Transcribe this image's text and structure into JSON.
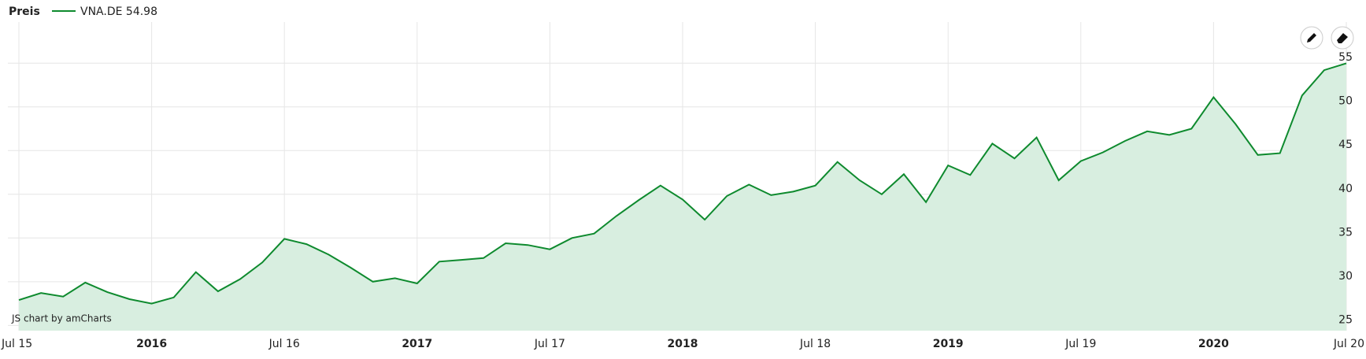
{
  "chart_data": {
    "type": "area",
    "legend_title": "Preis",
    "credit": "JS chart by amCharts",
    "categories": [
      "Jul 15",
      null,
      null,
      null,
      null,
      null,
      "2016",
      null,
      null,
      null,
      null,
      null,
      "Jul 16",
      null,
      null,
      null,
      null,
      null,
      "2017",
      null,
      null,
      null,
      null,
      null,
      "Jul 17",
      null,
      null,
      null,
      null,
      null,
      "2018",
      null,
      null,
      null,
      null,
      null,
      "Jul 18",
      null,
      null,
      null,
      null,
      null,
      "2019",
      null,
      null,
      null,
      null,
      null,
      "Jul 19",
      null,
      null,
      null,
      null,
      null,
      "2020",
      null,
      null,
      null,
      null,
      null,
      "Jul 20"
    ],
    "series": [
      {
        "name": "VNA.DE",
        "color": "#0e8a2e",
        "fill": "#d8eee0",
        "values": [
          27.9,
          28.7,
          28.3,
          29.9,
          28.8,
          28.0,
          27.5,
          28.2,
          31.1,
          28.9,
          30.3,
          32.2,
          34.9,
          34.3,
          33.1,
          31.6,
          30.0,
          30.4,
          29.8,
          32.3,
          32.5,
          32.7,
          34.4,
          34.2,
          33.7,
          35.0,
          35.5,
          37.5,
          39.3,
          41.0,
          39.4,
          37.1,
          39.8,
          41.1,
          39.9,
          40.3,
          41.0,
          43.7,
          41.6,
          40.0,
          42.3,
          39.1,
          43.3,
          42.2,
          45.8,
          44.1,
          46.5,
          41.6,
          43.8,
          44.8,
          46.1,
          47.2,
          46.8,
          47.5,
          51.1,
          48.0,
          44.5,
          44.7,
          51.3,
          54.2,
          54.98
        ]
      }
    ],
    "ylim": [
      24.4,
      59.7
    ],
    "yticks": [
      25,
      30,
      35,
      40,
      45,
      50,
      55
    ],
    "grid": true
  }
}
